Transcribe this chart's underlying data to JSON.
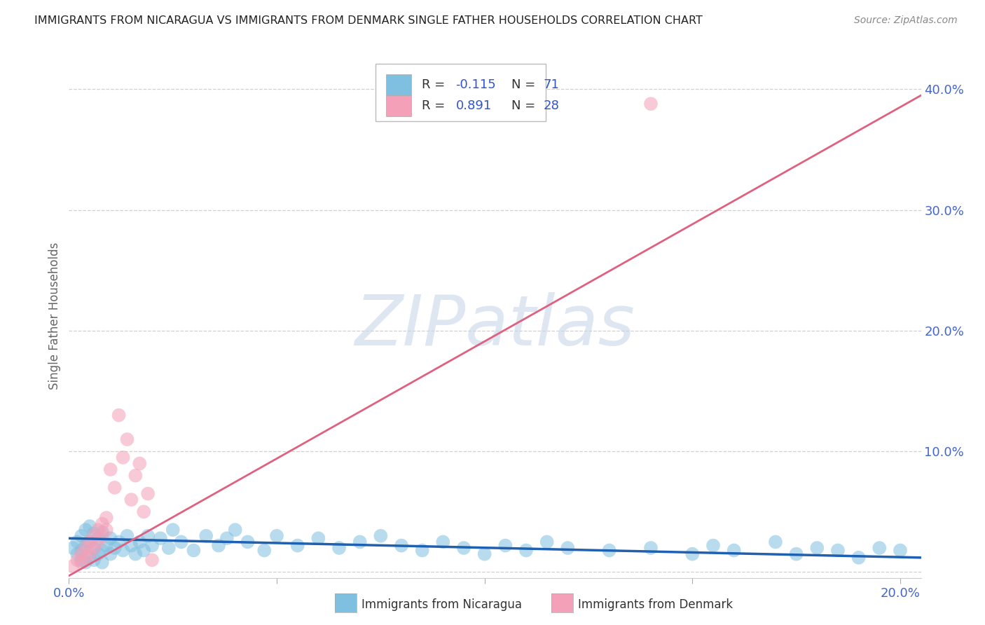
{
  "title": "IMMIGRANTS FROM NICARAGUA VS IMMIGRANTS FROM DENMARK SINGLE FATHER HOUSEHOLDS CORRELATION CHART",
  "source": "Source: ZipAtlas.com",
  "ylabel": "Single Father Households",
  "color_nicaragua": "#7fbfdf",
  "color_denmark": "#f4a0b8",
  "color_line_nicaragua": "#2060b0",
  "color_line_denmark": "#e06080",
  "watermark_text": "ZIPatlas",
  "xlim": [
    0.0,
    0.205
  ],
  "ylim": [
    -0.005,
    0.43
  ],
  "ytick_vals": [
    0.0,
    0.1,
    0.2,
    0.3,
    0.4
  ],
  "ytick_labels": [
    "",
    "10.0%",
    "20.0%",
    "30.0%",
    "40.0%"
  ],
  "xtick_vals": [
    0.0,
    0.05,
    0.1,
    0.15,
    0.2
  ],
  "xtick_labels": [
    "0.0%",
    "",
    "",
    "",
    "20.0%"
  ],
  "legend_entries": [
    {
      "color": "#7fbfdf",
      "r": "-0.115",
      "n": "71"
    },
    {
      "color": "#f4a0b8",
      "r": "0.891",
      "n": "28"
    }
  ],
  "nicaragua_line": {
    "x0": 0.0,
    "x1": 0.205,
    "y0": 0.028,
    "y1": 0.012
  },
  "denmark_line": {
    "x0": 0.0,
    "x1": 0.205,
    "y0": -0.003,
    "y1": 0.395
  },
  "nicaragua_pts_x": [
    0.001,
    0.002,
    0.002,
    0.003,
    0.003,
    0.003,
    0.004,
    0.004,
    0.004,
    0.005,
    0.005,
    0.005,
    0.006,
    0.006,
    0.006,
    0.007,
    0.007,
    0.008,
    0.008,
    0.008,
    0.009,
    0.01,
    0.01,
    0.011,
    0.012,
    0.013,
    0.014,
    0.015,
    0.016,
    0.017,
    0.018,
    0.019,
    0.02,
    0.022,
    0.024,
    0.025,
    0.027,
    0.03,
    0.033,
    0.036,
    0.038,
    0.04,
    0.043,
    0.047,
    0.05,
    0.055,
    0.06,
    0.065,
    0.07,
    0.075,
    0.08,
    0.085,
    0.09,
    0.095,
    0.1,
    0.105,
    0.11,
    0.115,
    0.12,
    0.13,
    0.14,
    0.15,
    0.155,
    0.16,
    0.17,
    0.175,
    0.18,
    0.185,
    0.19,
    0.195,
    0.2
  ],
  "nicaragua_pts_y": [
    0.02,
    0.015,
    0.025,
    0.01,
    0.018,
    0.03,
    0.008,
    0.022,
    0.035,
    0.012,
    0.025,
    0.038,
    0.01,
    0.02,
    0.032,
    0.015,
    0.028,
    0.008,
    0.018,
    0.033,
    0.022,
    0.015,
    0.028,
    0.02,
    0.025,
    0.018,
    0.03,
    0.022,
    0.015,
    0.025,
    0.018,
    0.03,
    0.022,
    0.028,
    0.02,
    0.035,
    0.025,
    0.018,
    0.03,
    0.022,
    0.028,
    0.035,
    0.025,
    0.018,
    0.03,
    0.022,
    0.028,
    0.02,
    0.025,
    0.03,
    0.022,
    0.018,
    0.025,
    0.02,
    0.015,
    0.022,
    0.018,
    0.025,
    0.02,
    0.018,
    0.02,
    0.015,
    0.022,
    0.018,
    0.025,
    0.015,
    0.02,
    0.018,
    0.012,
    0.02,
    0.018
  ],
  "denmark_pts_x": [
    0.001,
    0.002,
    0.003,
    0.003,
    0.004,
    0.004,
    0.005,
    0.005,
    0.006,
    0.006,
    0.007,
    0.007,
    0.008,
    0.008,
    0.009,
    0.009,
    0.01,
    0.011,
    0.012,
    0.013,
    0.014,
    0.015,
    0.016,
    0.017,
    0.018,
    0.019,
    0.02,
    0.14
  ],
  "denmark_pts_y": [
    0.005,
    0.01,
    0.015,
    0.008,
    0.02,
    0.012,
    0.025,
    0.015,
    0.03,
    0.02,
    0.035,
    0.025,
    0.04,
    0.03,
    0.045,
    0.035,
    0.085,
    0.07,
    0.13,
    0.095,
    0.11,
    0.06,
    0.08,
    0.09,
    0.05,
    0.065,
    0.01,
    0.388
  ]
}
